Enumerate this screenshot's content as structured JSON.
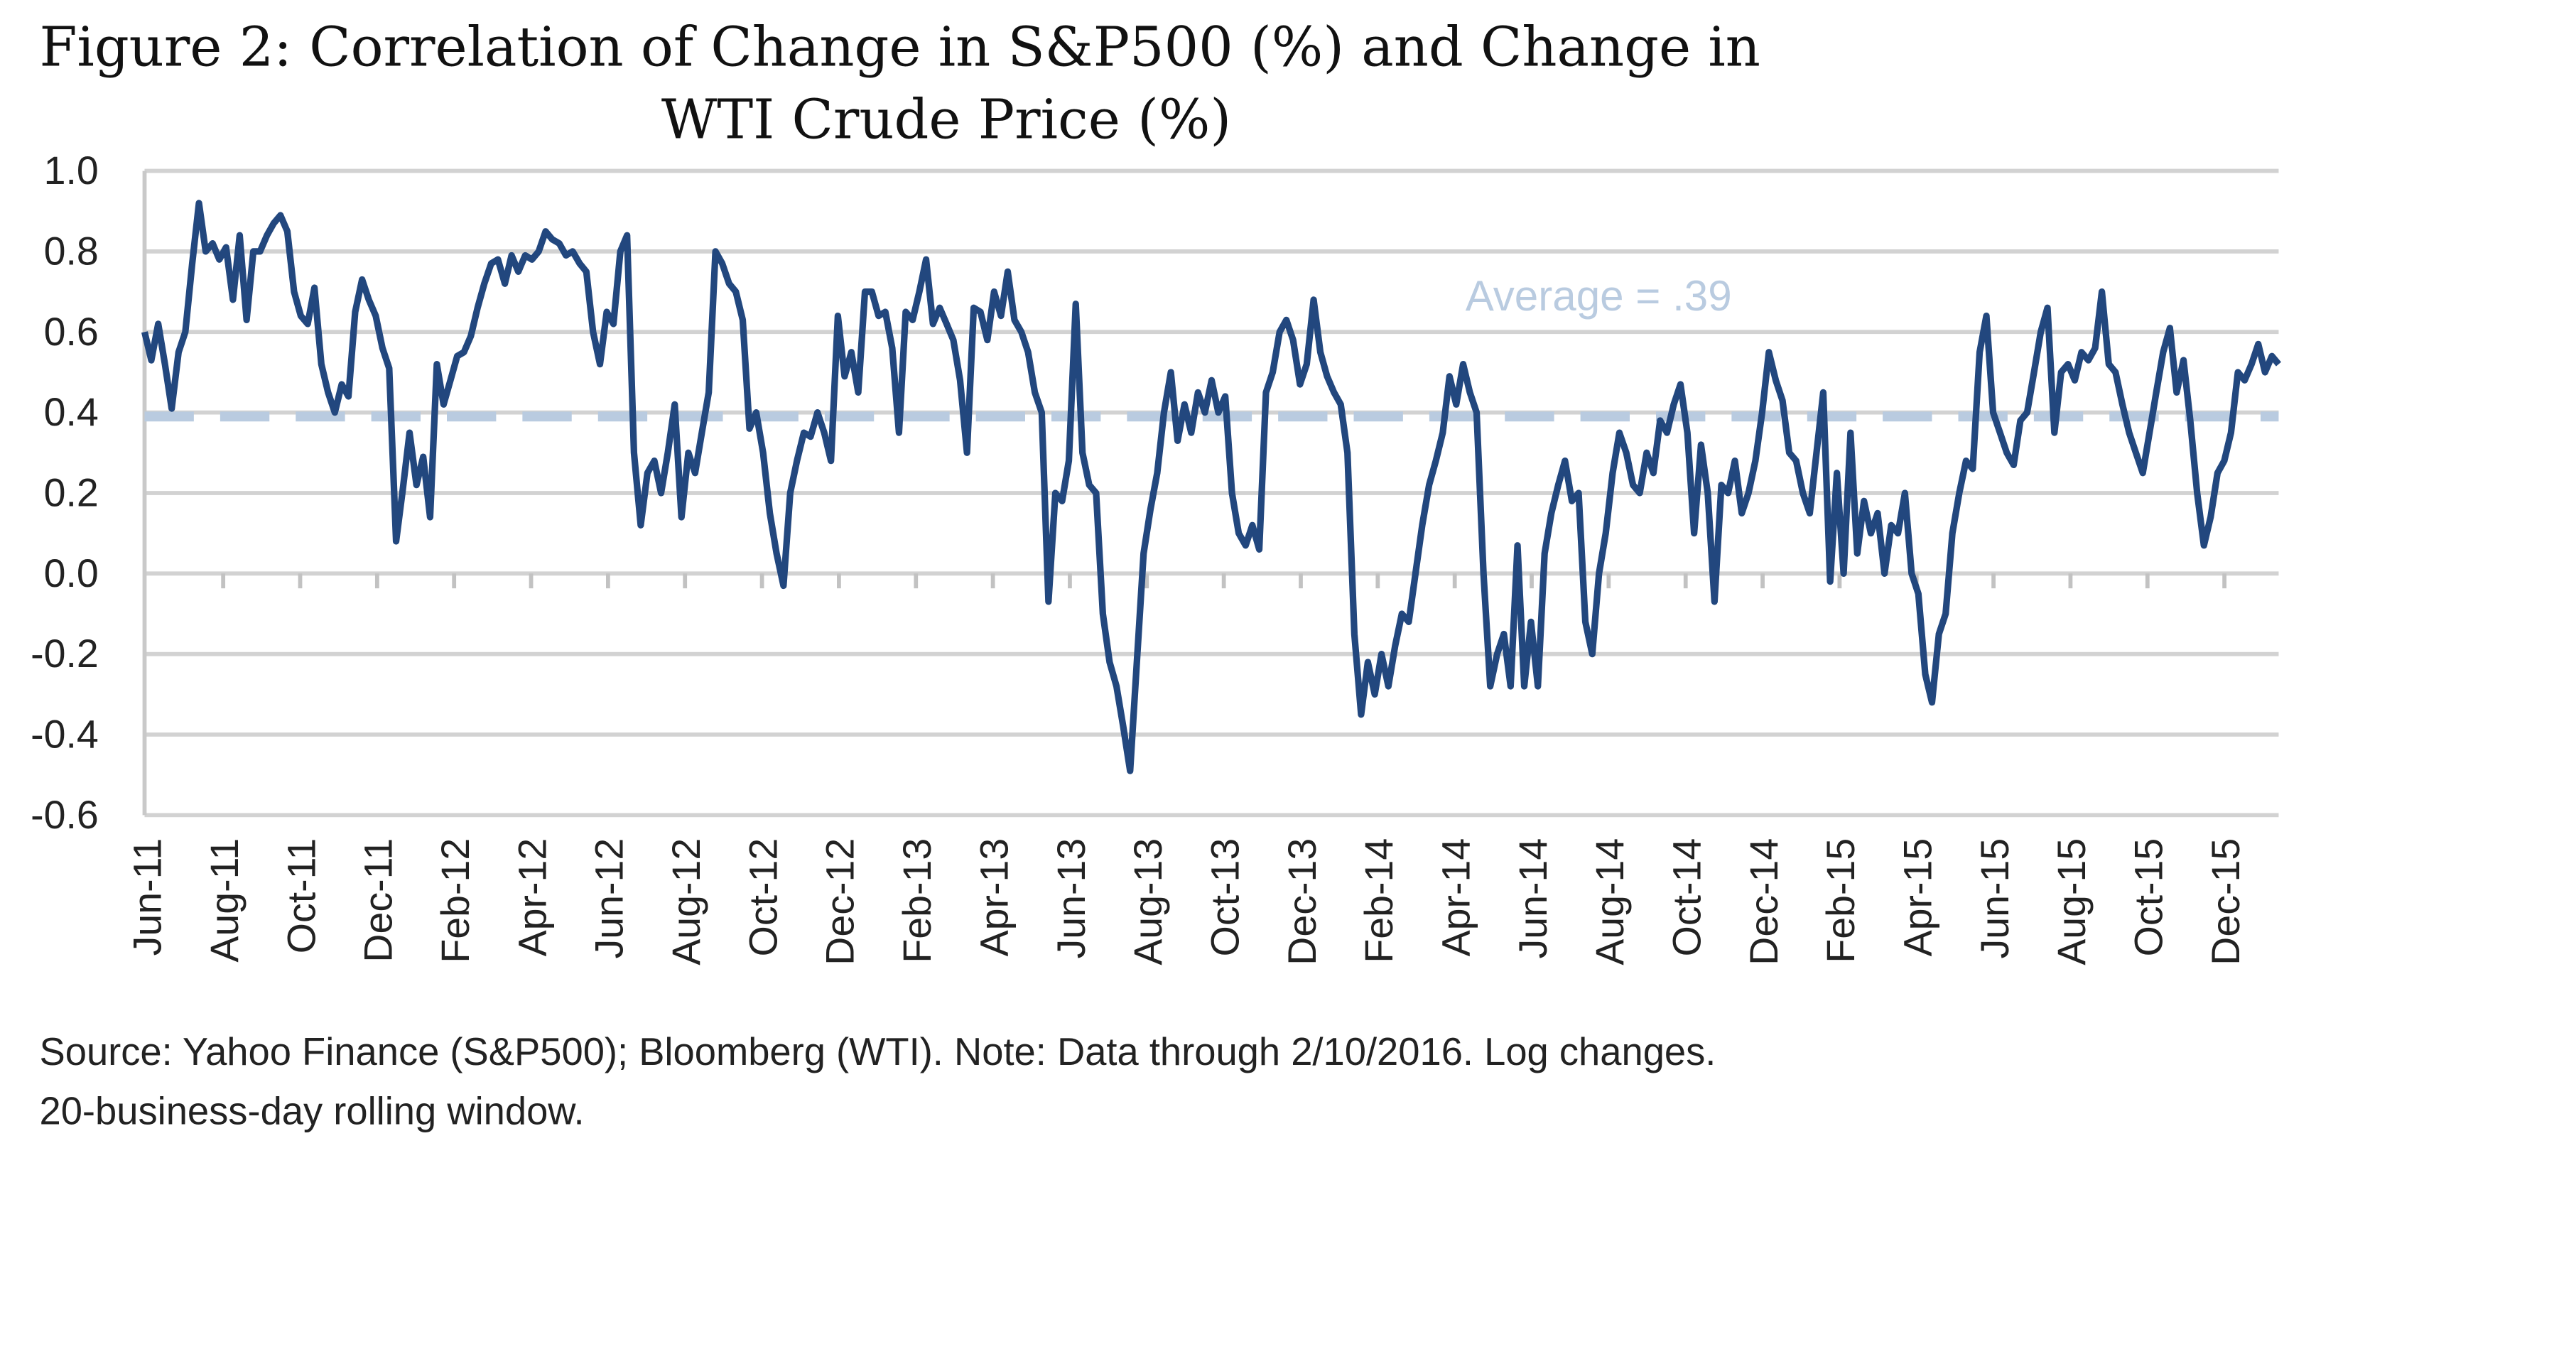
{
  "chart_data": {
    "type": "line",
    "title_line1": "Figure 2: Correlation of Change in S&P500 (%) and Change in",
    "title_line2": "WTI Crude Price (%)",
    "xlabel": "",
    "ylabel": "",
    "ylim": [
      -0.6,
      1.0
    ],
    "y_ticks": [
      "1.0",
      "0.8",
      "0.6",
      "0.4",
      "0.2",
      "0.0",
      "-0.2",
      "-0.4",
      "-0.6"
    ],
    "x_tick_labels": [
      "Jun-11",
      "Aug-11",
      "Oct-11",
      "Dec-11",
      "Feb-12",
      "Apr-12",
      "Jun-12",
      "Aug-12",
      "Oct-12",
      "Dec-12",
      "Feb-13",
      "Apr-13",
      "Jun-13",
      "Aug-13",
      "Oct-13",
      "Dec-13",
      "Feb-14",
      "Apr-14",
      "Jun-14",
      "Aug-14",
      "Oct-14",
      "Dec-14",
      "Feb-15",
      "Apr-15",
      "Jun-15",
      "Aug-15",
      "Oct-15",
      "Dec-15"
    ],
    "x_range": [
      "2011-06",
      "2016-02-10"
    ],
    "grid": true,
    "average": {
      "value": 0.39,
      "label": "Average  =  .39",
      "color": "#b9cbe0"
    },
    "series": [
      {
        "color": "#22477e",
        "values": [
          0.6,
          0.53,
          0.62,
          0.52,
          0.41,
          0.55,
          0.6,
          0.77,
          0.92,
          0.8,
          0.82,
          0.78,
          0.81,
          0.68,
          0.84,
          0.63,
          0.8,
          0.8,
          0.84,
          0.87,
          0.89,
          0.85,
          0.7,
          0.64,
          0.62,
          0.71,
          0.52,
          0.45,
          0.4,
          0.47,
          0.44,
          0.65,
          0.73,
          0.68,
          0.64,
          0.56,
          0.51,
          0.08,
          0.21,
          0.35,
          0.22,
          0.29,
          0.14,
          0.52,
          0.42,
          0.48,
          0.54,
          0.55,
          0.59,
          0.66,
          0.72,
          0.77,
          0.78,
          0.72,
          0.79,
          0.75,
          0.79,
          0.78,
          0.8,
          0.85,
          0.83,
          0.82,
          0.79,
          0.8,
          0.77,
          0.75,
          0.6,
          0.52,
          0.65,
          0.62,
          0.8,
          0.84,
          0.3,
          0.12,
          0.25,
          0.28,
          0.2,
          0.3,
          0.42,
          0.14,
          0.3,
          0.25,
          0.35,
          0.45,
          0.8,
          0.77,
          0.72,
          0.7,
          0.63,
          0.36,
          0.4,
          0.3,
          0.15,
          0.05,
          -0.03,
          0.2,
          0.28,
          0.35,
          0.34,
          0.4,
          0.35,
          0.28,
          0.64,
          0.49,
          0.55,
          0.45,
          0.7,
          0.7,
          0.64,
          0.65,
          0.56,
          0.35,
          0.65,
          0.63,
          0.7,
          0.78,
          0.62,
          0.66,
          0.62,
          0.58,
          0.48,
          0.3,
          0.66,
          0.65,
          0.58,
          0.7,
          0.64,
          0.75,
          0.63,
          0.6,
          0.55,
          0.45,
          0.4,
          -0.07,
          0.2,
          0.18,
          0.28,
          0.67,
          0.3,
          0.22,
          0.2,
          -0.1,
          -0.22,
          -0.28,
          -0.38,
          -0.49,
          -0.22,
          0.05,
          0.16,
          0.25,
          0.4,
          0.5,
          0.33,
          0.42,
          0.35,
          0.45,
          0.4,
          0.48,
          0.4,
          0.44,
          0.2,
          0.1,
          0.07,
          0.12,
          0.06,
          0.45,
          0.5,
          0.6,
          0.63,
          0.58,
          0.47,
          0.52,
          0.68,
          0.55,
          0.49,
          0.45,
          0.42,
          0.3,
          -0.15,
          -0.35,
          -0.22,
          -0.3,
          -0.2,
          -0.28,
          -0.18,
          -0.1,
          -0.12,
          0.0,
          0.12,
          0.22,
          0.28,
          0.35,
          0.49,
          0.42,
          0.52,
          0.45,
          0.4,
          0.0,
          -0.28,
          -0.2,
          -0.15,
          -0.28,
          0.07,
          -0.28,
          -0.12,
          -0.28,
          0.05,
          0.15,
          0.22,
          0.28,
          0.18,
          0.2,
          -0.12,
          -0.2,
          0.0,
          0.1,
          0.25,
          0.35,
          0.3,
          0.22,
          0.2,
          0.3,
          0.25,
          0.38,
          0.35,
          0.42,
          0.47,
          0.35,
          0.1,
          0.32,
          0.2,
          -0.07,
          0.22,
          0.2,
          0.28,
          0.15,
          0.2,
          0.28,
          0.4,
          0.55,
          0.48,
          0.43,
          0.3,
          0.28,
          0.2,
          0.15,
          0.3,
          0.45,
          -0.02,
          0.25,
          0.0,
          0.35,
          0.05,
          0.18,
          0.1,
          0.15,
          0.0,
          0.12,
          0.1,
          0.2,
          0.0,
          -0.05,
          -0.25,
          -0.32,
          -0.15,
          -0.1,
          0.1,
          0.2,
          0.28,
          0.26,
          0.55,
          0.64,
          0.4,
          0.35,
          0.3,
          0.27,
          0.38,
          0.4,
          0.5,
          0.6,
          0.66,
          0.35,
          0.5,
          0.52,
          0.48,
          0.55,
          0.53,
          0.56,
          0.7,
          0.52,
          0.5,
          0.42,
          0.35,
          0.3,
          0.25,
          0.35,
          0.45,
          0.55,
          0.61,
          0.45,
          0.53,
          0.38,
          0.2,
          0.07,
          0.14,
          0.25,
          0.28,
          0.35,
          0.5,
          0.48,
          0.52,
          0.57,
          0.5,
          0.54,
          0.52
        ]
      }
    ]
  },
  "source_note_line1": "Source: Yahoo Finance (S&P500); Bloomberg (WTI). Note: Data through 2/10/2016. Log changes.",
  "source_note_line2": "20-business-day rolling window."
}
